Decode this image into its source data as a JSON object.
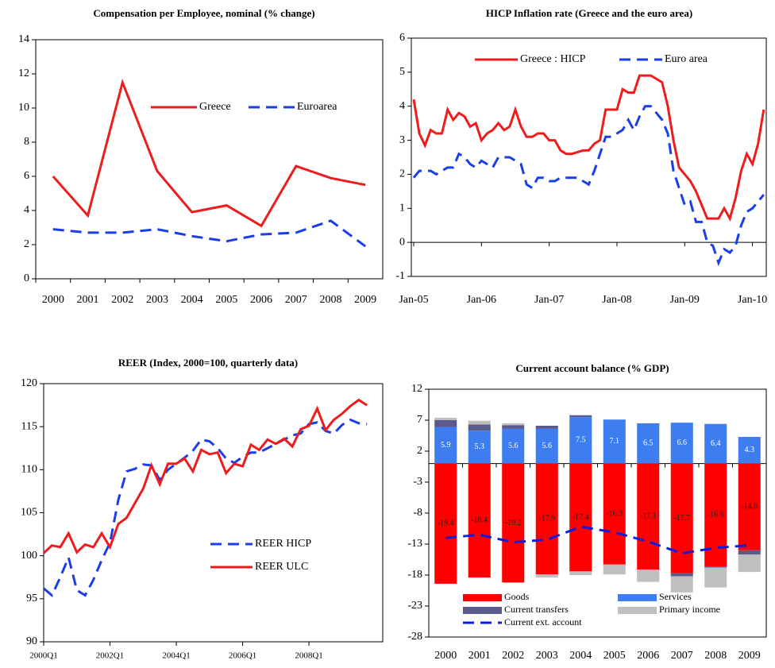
{
  "chart_data": [
    {
      "type": "line",
      "title": "Compensation  per Employee, nominal (% change)",
      "categories": [
        "2000",
        "2001",
        "2002",
        "2003",
        "2004",
        "2005",
        "2006",
        "2007",
        "2008",
        "2009"
      ],
      "series": [
        {
          "name": "Greece",
          "color": "#ee1c1c",
          "dash": false,
          "values": [
            6.0,
            3.7,
            11.5,
            6.3,
            3.9,
            4.3,
            3.1,
            6.6,
            5.9,
            5.5
          ]
        },
        {
          "name": "Euroarea",
          "color": "#1a3ee8",
          "dash": true,
          "values": [
            2.9,
            2.7,
            2.7,
            2.9,
            2.5,
            2.2,
            2.6,
            2.7,
            3.4,
            1.9
          ]
        }
      ],
      "ylim": [
        0,
        14
      ],
      "yticks": [
        0,
        2,
        4,
        6,
        8,
        10,
        12,
        14
      ],
      "legend": "upper center"
    },
    {
      "type": "line",
      "title": "HICP Inflation rate (Greece and the euro area)",
      "categories": [
        "Jan-05",
        null,
        null,
        null,
        null,
        null,
        null,
        null,
        null,
        null,
        null,
        null,
        "Jan-06",
        null,
        null,
        null,
        null,
        null,
        null,
        null,
        null,
        null,
        null,
        null,
        "Jan-07",
        null,
        null,
        null,
        null,
        null,
        null,
        null,
        null,
        null,
        null,
        null,
        "Jan-08",
        null,
        null,
        null,
        null,
        null,
        null,
        null,
        null,
        null,
        null,
        null,
        "Jan-09",
        null,
        null,
        null,
        null,
        null,
        null,
        null,
        null,
        null,
        null,
        null,
        "Jan-10",
        null,
        null
      ],
      "series": [
        {
          "name": "Greece : HICP",
          "color": "#ee1c1c",
          "dash": false,
          "values": [
            4.2,
            3.2,
            2.85,
            3.3,
            3.2,
            3.2,
            3.9,
            3.6,
            3.8,
            3.7,
            3.4,
            3.5,
            3.0,
            3.2,
            3.3,
            3.5,
            3.3,
            3.4,
            3.9,
            3.4,
            3.1,
            3.1,
            3.2,
            3.2,
            3.0,
            3.0,
            2.7,
            2.6,
            2.6,
            2.65,
            2.7,
            2.7,
            2.9,
            3.0,
            3.9,
            3.9,
            3.9,
            4.5,
            4.4,
            4.4,
            4.9,
            4.9,
            4.9,
            4.8,
            4.7,
            4.0,
            3.0,
            2.2,
            2.0,
            1.8,
            1.5,
            1.1,
            0.7,
            0.7,
            0.7,
            1.0,
            0.7,
            1.3,
            2.1,
            2.6,
            2.3,
            2.9,
            3.9
          ]
        },
        {
          "name": "Euro area",
          "color": "#1a3ee8",
          "dash": true,
          "values": [
            1.9,
            2.1,
            2.1,
            2.1,
            2.0,
            2.1,
            2.2,
            2.2,
            2.6,
            2.5,
            2.3,
            2.2,
            2.4,
            2.3,
            2.2,
            2.5,
            2.5,
            2.5,
            2.4,
            2.3,
            1.7,
            1.6,
            1.9,
            1.9,
            1.8,
            1.8,
            1.9,
            1.9,
            1.9,
            1.9,
            1.8,
            1.7,
            2.1,
            2.6,
            3.1,
            3.1,
            3.2,
            3.3,
            3.6,
            3.3,
            3.7,
            4.0,
            4.0,
            3.8,
            3.6,
            3.2,
            2.1,
            1.6,
            1.1,
            1.2,
            0.6,
            0.6,
            0.0,
            -0.1,
            -0.6,
            -0.2,
            -0.3,
            -0.1,
            0.5,
            0.9,
            1.0,
            1.2,
            1.4
          ]
        }
      ],
      "ylim": [
        -1,
        6
      ],
      "yticks": [
        -1,
        0,
        1,
        2,
        3,
        4,
        5,
        6
      ],
      "legend": "upper center"
    },
    {
      "type": "line",
      "title": "REER (Index, 2000=100, quarterly data)",
      "categories": [
        "2000Q1",
        null,
        null,
        null,
        null,
        null,
        null,
        null,
        "2002Q1",
        null,
        null,
        null,
        null,
        null,
        null,
        null,
        "2004Q1",
        null,
        null,
        null,
        null,
        null,
        null,
        null,
        "2006Q1",
        null,
        null,
        null,
        null,
        null,
        null,
        null,
        "2008Q1",
        null,
        null,
        null,
        null,
        null,
        null,
        null
      ],
      "series": [
        {
          "name": "REER HICP",
          "color": "#1a3ee8",
          "dash": true,
          "values": [
            96.2,
            95.4,
            97.5,
            99.8,
            96.0,
            95.4,
            97.2,
            99.5,
            101.5,
            106.5,
            109.8,
            110.1,
            110.6,
            110.5,
            108.8,
            110.0,
            110.7,
            111.4,
            112.2,
            113.5,
            113.3,
            112.5,
            111.3,
            110.8,
            111.5,
            112.0,
            112.0,
            112.5,
            113.0,
            113.5,
            114.0,
            114.2,
            115.3,
            115.5,
            114.5,
            114.2,
            115.2,
            115.8,
            115.4,
            115.3
          ]
        },
        {
          "name": "REER ULC",
          "color": "#ee1c1c",
          "dash": false,
          "values": [
            100.3,
            101.2,
            101.0,
            102.6,
            100.4,
            101.3,
            101.0,
            102.6,
            101.0,
            103.7,
            104.4,
            106.1,
            107.8,
            110.5,
            108.3,
            110.7,
            110.7,
            111.3,
            109.8,
            112.3,
            111.8,
            112.0,
            109.6,
            110.7,
            110.4,
            112.9,
            112.3,
            113.5,
            113.0,
            113.6,
            112.7,
            114.7,
            115.1,
            117.1,
            114.6,
            115.8,
            116.5,
            117.4,
            118.1,
            117.5
          ]
        }
      ],
      "ylim": [
        90,
        120
      ],
      "yticks": [
        90,
        95,
        100,
        105,
        110,
        115,
        120
      ],
      "legend": "lower right"
    },
    {
      "type": "bar",
      "title": "Current account balance (% GDP)",
      "categories": [
        "2000",
        "2001",
        "2002",
        "2003",
        "2004",
        "2005",
        "2006",
        "2007",
        "2008",
        "2009"
      ],
      "series": [
        {
          "name": "Goods",
          "color": "#ff0000",
          "values": [
            -19.4,
            -18.4,
            -19.2,
            -17.9,
            -17.4,
            -16.3,
            -17.1,
            -17.7,
            -16.6,
            -14.0
          ],
          "value_labels": [
            "-19.4",
            "-18.4",
            "-19.2",
            "-17.9",
            "-17.4",
            "-16.3",
            "-17.1",
            "-17.7",
            "-16.6",
            "-14.0"
          ],
          "label_color": "#222222"
        },
        {
          "name": "Services",
          "color": "#3d7df0",
          "values": [
            5.9,
            5.3,
            5.6,
            5.6,
            7.5,
            7.1,
            6.5,
            6.6,
            6.4,
            4.3
          ],
          "label_color": "#ffffff"
        },
        {
          "name": "Current transfers",
          "color": "#5a5a8c",
          "values": [
            1.1,
            1.0,
            0.6,
            0.5,
            0.3,
            0,
            0,
            -0.5,
            -0.2,
            -0.7
          ]
        },
        {
          "name": "Primary income",
          "color": "#bfbfbf",
          "values": [
            0.4,
            0.6,
            0.3,
            -0.5,
            -0.6,
            -1.6,
            -2.0,
            -2.6,
            -3.2,
            -2.8
          ]
        },
        {
          "name": "Current ext. account",
          "color": "#0a1ee0",
          "type": "line",
          "dash": true,
          "values": [
            -12.0,
            -11.5,
            -12.7,
            -12.3,
            -10.2,
            -11.1,
            -12.6,
            -14.5,
            -13.6,
            -13.2
          ]
        }
      ],
      "ylim": [
        -28,
        12
      ],
      "yticks": [
        -28,
        -23,
        -18,
        -13,
        -8,
        -3,
        2,
        7,
        12
      ],
      "legend": "bottom"
    }
  ]
}
